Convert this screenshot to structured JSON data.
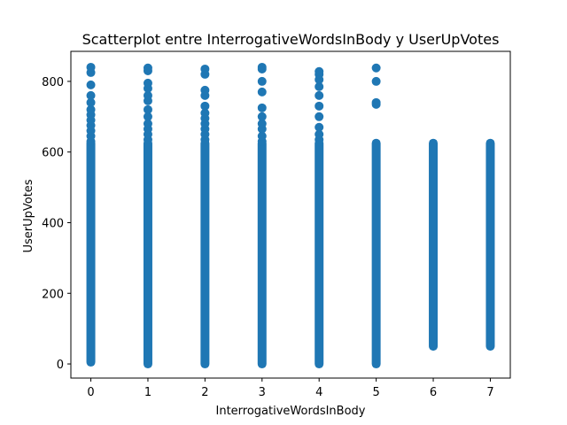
{
  "chart_data": {
    "type": "scatter",
    "title": "Scatterplot entre InterrogativeWordsInBody y UserUpVotes",
    "xlabel": "InterrogativeWordsInBody",
    "ylabel": "UserUpVotes",
    "xlim": [
      -0.35,
      7.35
    ],
    "ylim": [
      -40,
      885
    ],
    "xticks": [
      0,
      1,
      2,
      3,
      4,
      5,
      6,
      7
    ],
    "yticks": [
      0,
      200,
      400,
      600,
      800
    ],
    "grid": false,
    "legend": "none",
    "marker_color": "#1f77b4",
    "series": [
      {
        "columns": [
          {
            "x": 0,
            "band": [
              5,
              625
            ],
            "outliers": [
              630,
              645,
              660,
              675,
              690,
              705,
              720,
              740,
              760,
              790,
              825,
              840
            ]
          },
          {
            "x": 1,
            "band": [
              0,
              625
            ],
            "outliers": [
              635,
              650,
              665,
              680,
              700,
              720,
              745,
              760,
              780,
              795,
              830,
              838
            ]
          },
          {
            "x": 2,
            "band": [
              0,
              625
            ],
            "outliers": [
              635,
              650,
              665,
              680,
              695,
              710,
              730,
              760,
              775,
              820,
              835
            ]
          },
          {
            "x": 3,
            "band": [
              0,
              625
            ],
            "outliers": [
              630,
              645,
              665,
              680,
              700,
              725,
              770,
              800,
              835,
              840
            ]
          },
          {
            "x": 4,
            "band": [
              0,
              625
            ],
            "outliers": [
              635,
              650,
              670,
              700,
              730,
              760,
              785,
              805,
              820,
              828
            ]
          },
          {
            "x": 5,
            "band": [
              0,
              625
            ],
            "outliers": [
              735,
              740,
              800,
              838
            ]
          },
          {
            "x": 6,
            "band": [
              50,
              625
            ],
            "outliers": []
          },
          {
            "x": 7,
            "band": [
              50,
              625
            ],
            "outliers": []
          }
        ]
      }
    ]
  }
}
